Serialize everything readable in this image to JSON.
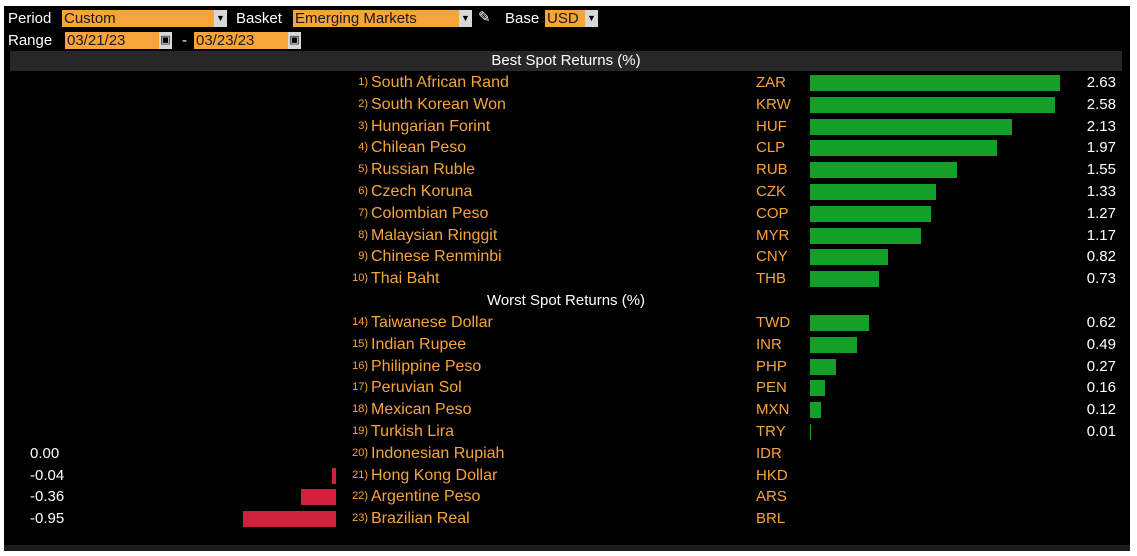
{
  "toolbar": {
    "period_label": "Period",
    "period_value": "Custom",
    "basket_label": "Basket",
    "basket_value": "Emerging Markets",
    "base_label": "Base",
    "base_value": "USD",
    "range_label": "Range",
    "range_start": "03/21/23",
    "range_sep": "-",
    "range_end": "03/23/23"
  },
  "icons": {
    "dropdown": "chevron-down-icon",
    "calendar": "calendar-icon",
    "edit": "pencil-icon"
  },
  "colors": {
    "accent": "#f7a43b",
    "positive": "#14a028",
    "negative": "#d0203c",
    "background": "#000000"
  },
  "chart_data": {
    "type": "bar",
    "best_title": "Best Spot Returns (%)",
    "worst_title": "Worst Spot Returns (%)",
    "best": [
      {
        "rank": "1)",
        "name": "South African Rand",
        "ticker": "ZAR",
        "value": "2.63"
      },
      {
        "rank": "2)",
        "name": "South Korean Won",
        "ticker": "KRW",
        "value": "2.58"
      },
      {
        "rank": "3)",
        "name": "Hungarian Forint",
        "ticker": "HUF",
        "value": "2.13"
      },
      {
        "rank": "4)",
        "name": "Chilean Peso",
        "ticker": "CLP",
        "value": "1.97"
      },
      {
        "rank": "5)",
        "name": "Russian Ruble",
        "ticker": "RUB",
        "value": "1.55"
      },
      {
        "rank": "6)",
        "name": "Czech Koruna",
        "ticker": "CZK",
        "value": "1.33"
      },
      {
        "rank": "7)",
        "name": "Colombian Peso",
        "ticker": "COP",
        "value": "1.27"
      },
      {
        "rank": "8)",
        "name": "Malaysian Ringgit",
        "ticker": "MYR",
        "value": "1.17"
      },
      {
        "rank": "9)",
        "name": "Chinese Renminbi",
        "ticker": "CNY",
        "value": "0.82"
      },
      {
        "rank": "10)",
        "name": "Thai Baht",
        "ticker": "THB",
        "value": "0.73"
      }
    ],
    "worst": [
      {
        "rank": "14)",
        "name": "Taiwanese Dollar",
        "ticker": "TWD",
        "value": "0.62"
      },
      {
        "rank": "15)",
        "name": "Indian Rupee",
        "ticker": "INR",
        "value": "0.49"
      },
      {
        "rank": "16)",
        "name": "Philippine Peso",
        "ticker": "PHP",
        "value": "0.27"
      },
      {
        "rank": "17)",
        "name": "Peruvian Sol",
        "ticker": "PEN",
        "value": "0.16"
      },
      {
        "rank": "18)",
        "name": "Mexican Peso",
        "ticker": "MXN",
        "value": "0.12"
      },
      {
        "rank": "19)",
        "name": "Turkish Lira",
        "ticker": "TRY",
        "value": "0.01"
      },
      {
        "rank": "20)",
        "name": "Indonesian Rupiah",
        "ticker": "IDR",
        "value": "0.00"
      },
      {
        "rank": "21)",
        "name": "Hong Kong Dollar",
        "ticker": "HKD",
        "value": "-0.04"
      },
      {
        "rank": "22)",
        "name": "Argentine Peso",
        "ticker": "ARS",
        "value": "-0.36"
      },
      {
        "rank": "23)",
        "name": "Brazilian Real",
        "ticker": "BRL",
        "value": "-0.95"
      }
    ]
  }
}
